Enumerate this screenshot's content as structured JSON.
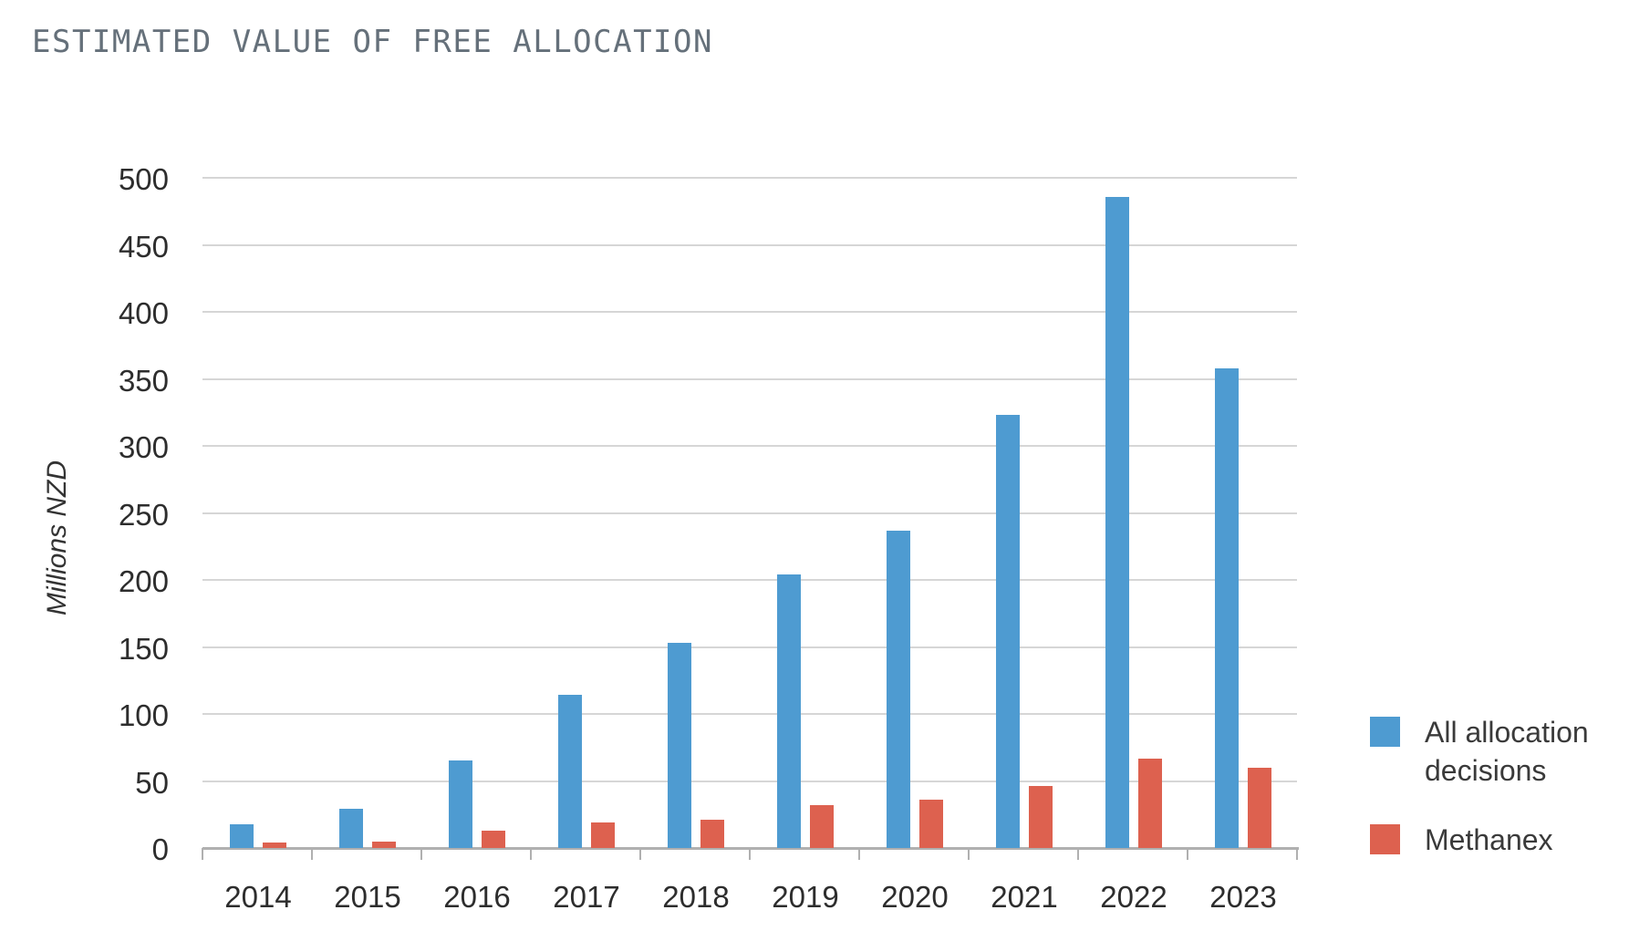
{
  "title": "ESTIMATED VALUE OF FREE ALLOCATION",
  "colors": {
    "series_blue": "#4e9bd1",
    "series_red": "#dd614f",
    "gridline": "#d6d6d6",
    "axis": "#b0b0b0",
    "title_text": "#65707a",
    "tick_text": "#2d2d2d",
    "legend_text": "#3a3a3a"
  },
  "chart_data": {
    "type": "bar",
    "title": "ESTIMATED VALUE OF FREE ALLOCATION",
    "xlabel": "",
    "ylabel": "Millions NZD",
    "categories": [
      "2014",
      "2015",
      "2016",
      "2017",
      "2018",
      "2019",
      "2020",
      "2021",
      "2022",
      "2023"
    ],
    "series": [
      {
        "name": "All allocation decisions",
        "color": "#4e9bd1",
        "values": [
          18,
          29,
          65,
          114,
          153,
          204,
          237,
          323,
          486,
          358
        ]
      },
      {
        "name": "Methanex",
        "color": "#dd614f",
        "values": [
          4,
          5,
          13,
          19,
          21,
          32,
          36,
          46,
          67,
          60
        ]
      }
    ],
    "ylim": [
      0,
      500
    ],
    "ytick_step": 50,
    "grid": true,
    "legend_position": "right"
  }
}
